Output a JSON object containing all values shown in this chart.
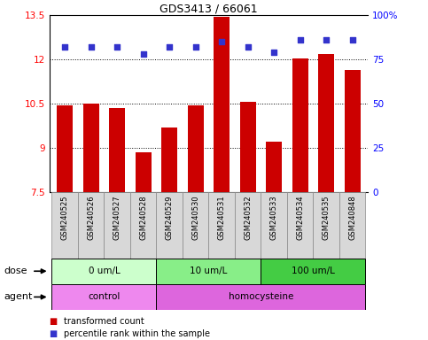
{
  "title": "GDS3413 / 66061",
  "samples": [
    "GSM240525",
    "GSM240526",
    "GSM240527",
    "GSM240528",
    "GSM240529",
    "GSM240530",
    "GSM240531",
    "GSM240532",
    "GSM240533",
    "GSM240534",
    "GSM240535",
    "GSM240848"
  ],
  "transformed_count": [
    10.45,
    10.5,
    10.35,
    8.85,
    9.7,
    10.45,
    13.45,
    10.55,
    9.2,
    12.05,
    12.2,
    11.65
  ],
  "percentile_rank": [
    82,
    82,
    82,
    78,
    82,
    82,
    85,
    82,
    79,
    86,
    86,
    86
  ],
  "ylim_left": [
    7.5,
    13.5
  ],
  "ylim_right": [
    0,
    100
  ],
  "yticks_left": [
    7.5,
    9.0,
    10.5,
    12.0,
    13.5
  ],
  "ytick_labels_left": [
    "7.5",
    "9",
    "10.5",
    "12",
    "13.5"
  ],
  "yticks_right": [
    0,
    25,
    50,
    75,
    100
  ],
  "ytick_labels_right": [
    "0",
    "25",
    "50",
    "75",
    "100%"
  ],
  "bar_color": "#cc0000",
  "dot_color": "#3333cc",
  "dose_groups": [
    {
      "label": "0 um/L",
      "start": 0,
      "end": 4,
      "color": "#ccffcc"
    },
    {
      "label": "10 um/L",
      "start": 4,
      "end": 8,
      "color": "#88ee88"
    },
    {
      "label": "100 um/L",
      "start": 8,
      "end": 12,
      "color": "#44cc44"
    }
  ],
  "agent_groups": [
    {
      "label": "control",
      "start": 0,
      "end": 4,
      "color": "#ee88ee"
    },
    {
      "label": "homocysteine",
      "start": 4,
      "end": 12,
      "color": "#dd66dd"
    }
  ],
  "dose_label": "dose",
  "agent_label": "agent",
  "legend_bar_label": "transformed count",
  "legend_dot_label": "percentile rank within the sample",
  "bg_color": "#ffffff",
  "plot_bg_color": "#ffffff",
  "sample_label_bg": "#d8d8d8",
  "sample_label_border": "#888888"
}
